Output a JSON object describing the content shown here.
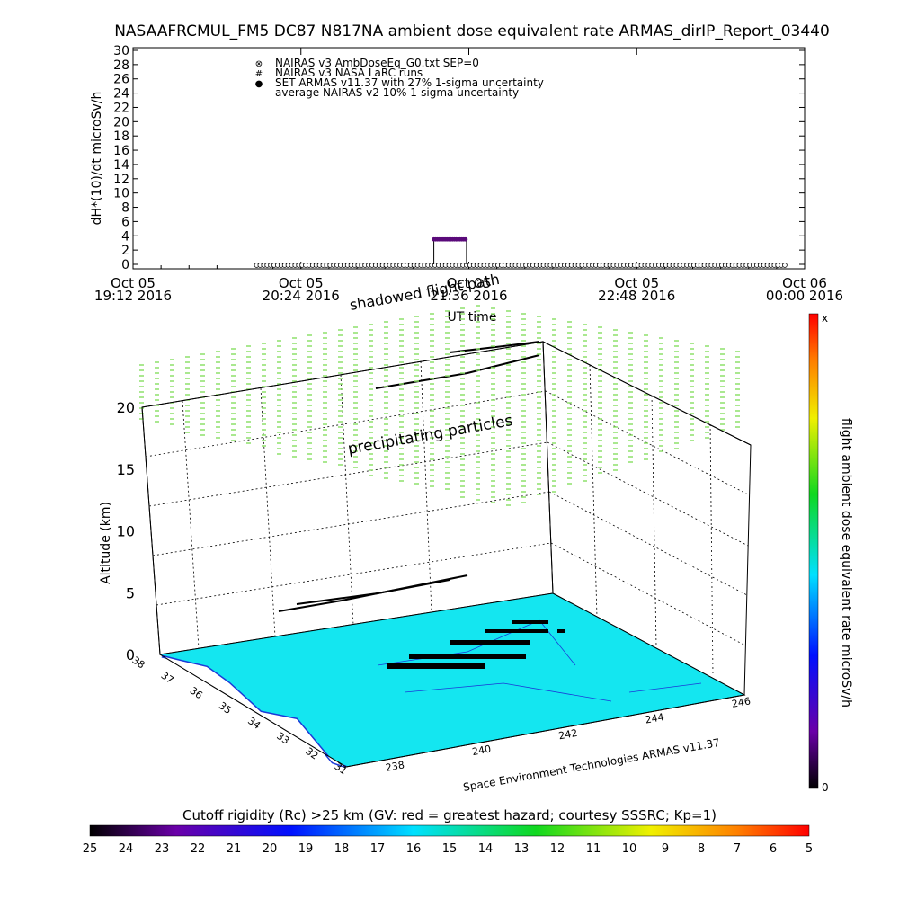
{
  "page_title": "NASAAFRCMUL_FM5 DC87 N817NA ambient dose equivalent rate ARMAS_dirIP_Report_03440",
  "colors": {
    "flight_marker": "#5a0a7a",
    "map_fill": "#14e6f0",
    "map_coast": "#1a3ad8",
    "precip": "#8ee06a"
  },
  "chart_data": [
    {
      "type": "line",
      "ylabel": "dH*(10)/dt microSv/h",
      "xlabel": "UT time",
      "ylim": [
        0,
        30
      ],
      "yticks": [
        "0",
        "2",
        "4",
        "6",
        "8",
        "10",
        "12",
        "14",
        "16",
        "18",
        "20",
        "22",
        "24",
        "26",
        "28",
        "30"
      ],
      "xticks": [
        {
          "t": 0,
          "l1": "Oct 05",
          "l2": "19:12 2016"
        },
        {
          "t": 72,
          "l1": "Oct 05",
          "l2": "20:24 2016"
        },
        {
          "t": 144,
          "l1": "Oct 05",
          "l2": "21:36 2016"
        },
        {
          "t": 216,
          "l1": "Oct 05",
          "l2": "22:48 2016"
        },
        {
          "t": 288,
          "l1": "Oct 06",
          "l2": "00:00 2016"
        }
      ],
      "xlim_minutes": [
        0,
        288
      ],
      "legend": [
        {
          "symbol": "⊗",
          "label": "NAIRAS v3 AmbDoseEq_G0.txt SEP=0"
        },
        {
          "symbol": "#",
          "label": "NAIRAS v3 NASA LaRC runs"
        },
        {
          "symbol": "●",
          "label": "SET ARMAS v11.37 with 27% 1-sigma uncertainty"
        },
        {
          "symbol": "",
          "label": "average NAIRAS v2 10% 1-sigma uncertainty"
        }
      ],
      "legend_position": "top-left",
      "series": [
        {
          "name": "NAIRAS v3 AmbDoseEq_G0.txt SEP=0",
          "t_start": 53,
          "t_end": 280,
          "value": 0
        },
        {
          "name": "SET ARMAS v11.37 with 27% 1-sigma uncertainty",
          "t_start": 129,
          "t_end": 143,
          "value": 3.5,
          "baseline": 0
        }
      ]
    },
    {
      "type": "scatter",
      "zlabel": "Altitude (km)",
      "zticks": [
        "0",
        "5",
        "10",
        "15",
        "20"
      ],
      "lat_ticks": [
        "38",
        "37",
        "36",
        "35",
        "34",
        "33",
        "32",
        "31"
      ],
      "lon_ticks": [
        "238",
        "240",
        "242",
        "244",
        "246"
      ],
      "annotations": [
        "shadowed flight path",
        "precipitating particles"
      ],
      "credit": "Space Environment Technologies ARMAS v11.37"
    },
    {
      "type": "heatmap",
      "vertical_colorbar": {
        "label": "flight ambient dose equivalent rate microSv/h",
        "top": "x",
        "bottom": "0"
      },
      "horizontal_colorbar": {
        "title": "Cutoff rigidity (Rc) >25 km (GV: red = greatest hazard; courtesy SSSRC; Kp=1)",
        "ticks": [
          "25",
          "24",
          "23",
          "22",
          "21",
          "20",
          "19",
          "18",
          "17",
          "16",
          "15",
          "14",
          "13",
          "12",
          "11",
          "10",
          "9",
          "8",
          "7",
          "6",
          "5"
        ]
      }
    }
  ]
}
